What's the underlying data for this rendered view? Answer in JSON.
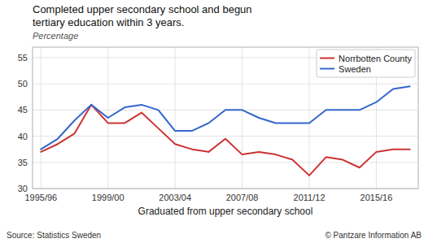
{
  "chart_data": {
    "type": "line",
    "title": "Completed upper secondary school and begun\ntertiary education within 3 years.",
    "subtitle": "Percentage",
    "x_label": "Graduated from upper secondary school",
    "annotations": [
      "Source: Statistics Sweden",
      "© Pantzare Information AB"
    ],
    "categories": [
      "1995/96",
      null,
      null,
      null,
      "1999/00",
      null,
      null,
      null,
      "2003/04",
      null,
      null,
      null,
      "2007/08",
      null,
      null,
      null,
      "2011/12",
      null,
      null,
      null,
      "2015/16",
      null,
      null
    ],
    "series": [
      {
        "name": "Norrbotten County",
        "color": "#cc3333",
        "values": [
          37.0,
          38.5,
          40.5,
          46.0,
          42.5,
          42.5,
          44.5,
          41.5,
          38.5,
          37.5,
          37.0,
          39.5,
          36.5,
          37.0,
          36.5,
          35.5,
          32.5,
          36.0,
          35.5,
          34.0,
          37.0,
          37.5,
          37.5
        ]
      },
      {
        "name": "Sweden",
        "color": "#3366cc",
        "values": [
          37.5,
          39.5,
          43.0,
          46.0,
          43.5,
          45.5,
          46.0,
          45.0,
          41.0,
          41.0,
          42.5,
          45.0,
          45.0,
          43.5,
          42.5,
          42.5,
          42.5,
          45.0,
          45.0,
          45.0,
          46.5,
          49.0,
          49.5
        ]
      }
    ],
    "ylim": [
      30,
      57
    ],
    "yticks": [
      30,
      35,
      40,
      45,
      50,
      55
    ],
    "grid": true,
    "legend": "upper right"
  }
}
